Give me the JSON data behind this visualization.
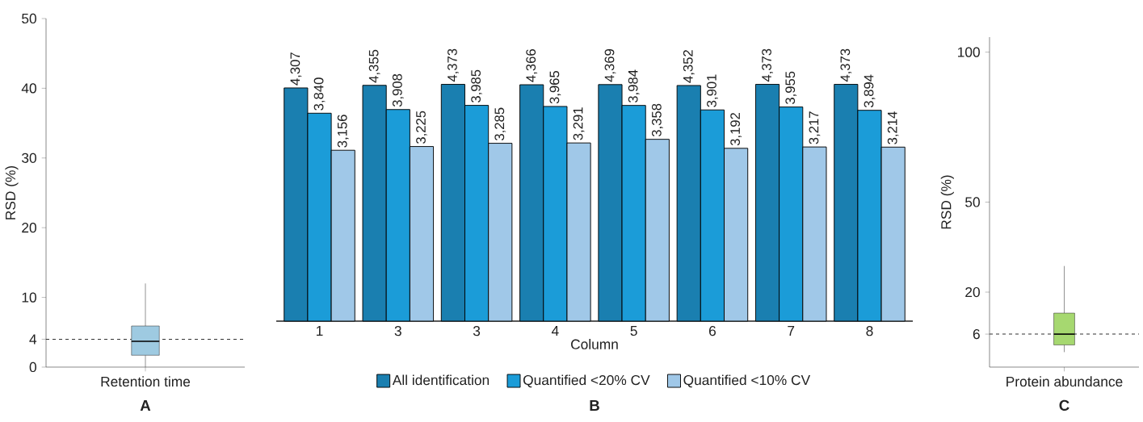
{
  "chart_data": [
    {
      "type": "box",
      "ylabel": "RSD (%)",
      "categories": [
        "Retention time"
      ],
      "color": "#9ecae1",
      "boxes": [
        {
          "low": 0,
          "q1": 1.7,
          "median": 3.7,
          "q3": 5.9,
          "high": 12
        }
      ],
      "ylim": [
        0,
        50
      ],
      "yticks": [
        0,
        4,
        10,
        20,
        30,
        40,
        50
      ],
      "ref_lines": [
        {
          "axis": "y",
          "value": 4,
          "line_style": "dashed"
        }
      ],
      "annotations": [
        "**A**"
      ]
    },
    {
      "type": "bar",
      "xlabel": "Column",
      "categories": [
        "1",
        "3",
        "3",
        "4",
        "5",
        "6",
        "7",
        "8"
      ],
      "series": [
        {
          "name": "All identification",
          "color": "#1a7fb0",
          "values": [
            4307,
            4355,
            4373,
            4366,
            4369,
            4352,
            4373,
            4373
          ],
          "value_labels": [
            "4,307",
            "4,355",
            "4,373",
            "4,366",
            "4,369",
            "4,352",
            "4,373",
            "4,373"
          ]
        },
        {
          "name": "Quantified <20% CV",
          "color": "#1b9cd8",
          "values": [
            3840,
            3908,
            3985,
            3965,
            3984,
            3901,
            3955,
            3894
          ],
          "value_labels": [
            "3,840",
            "3,908",
            "3,985",
            "3,965",
            "3,984",
            "3,901",
            "3,955",
            "3,894"
          ]
        },
        {
          "name": "Quantified <10% CV",
          "color": "#a0c8e8",
          "values": [
            3156,
            3225,
            3285,
            3291,
            3358,
            3192,
            3217,
            3214
          ],
          "value_labels": [
            "3,156",
            "3,225",
            "3,285",
            "3,291",
            "3,358",
            "3,192",
            "3,217",
            "3,214"
          ]
        }
      ],
      "tick_labels": "x",
      "legend": "bottom",
      "annotations": [
        "**B**"
      ]
    },
    {
      "type": "box",
      "ylabel": "RSD (%)",
      "categories": [
        "Protein abundance"
      ],
      "color": "#a6d870",
      "boxes": [
        {
          "low": 0,
          "q1": 2.4,
          "median": 6,
          "q3": 13,
          "high": 28.7
        }
      ],
      "ylim": [
        -5,
        105
      ],
      "yticks": [
        6,
        20,
        50,
        100
      ],
      "ref_lines": [
        {
          "axis": "y",
          "value": 6,
          "line_style": "dashed"
        }
      ],
      "annotations": [
        "**C**"
      ]
    }
  ]
}
